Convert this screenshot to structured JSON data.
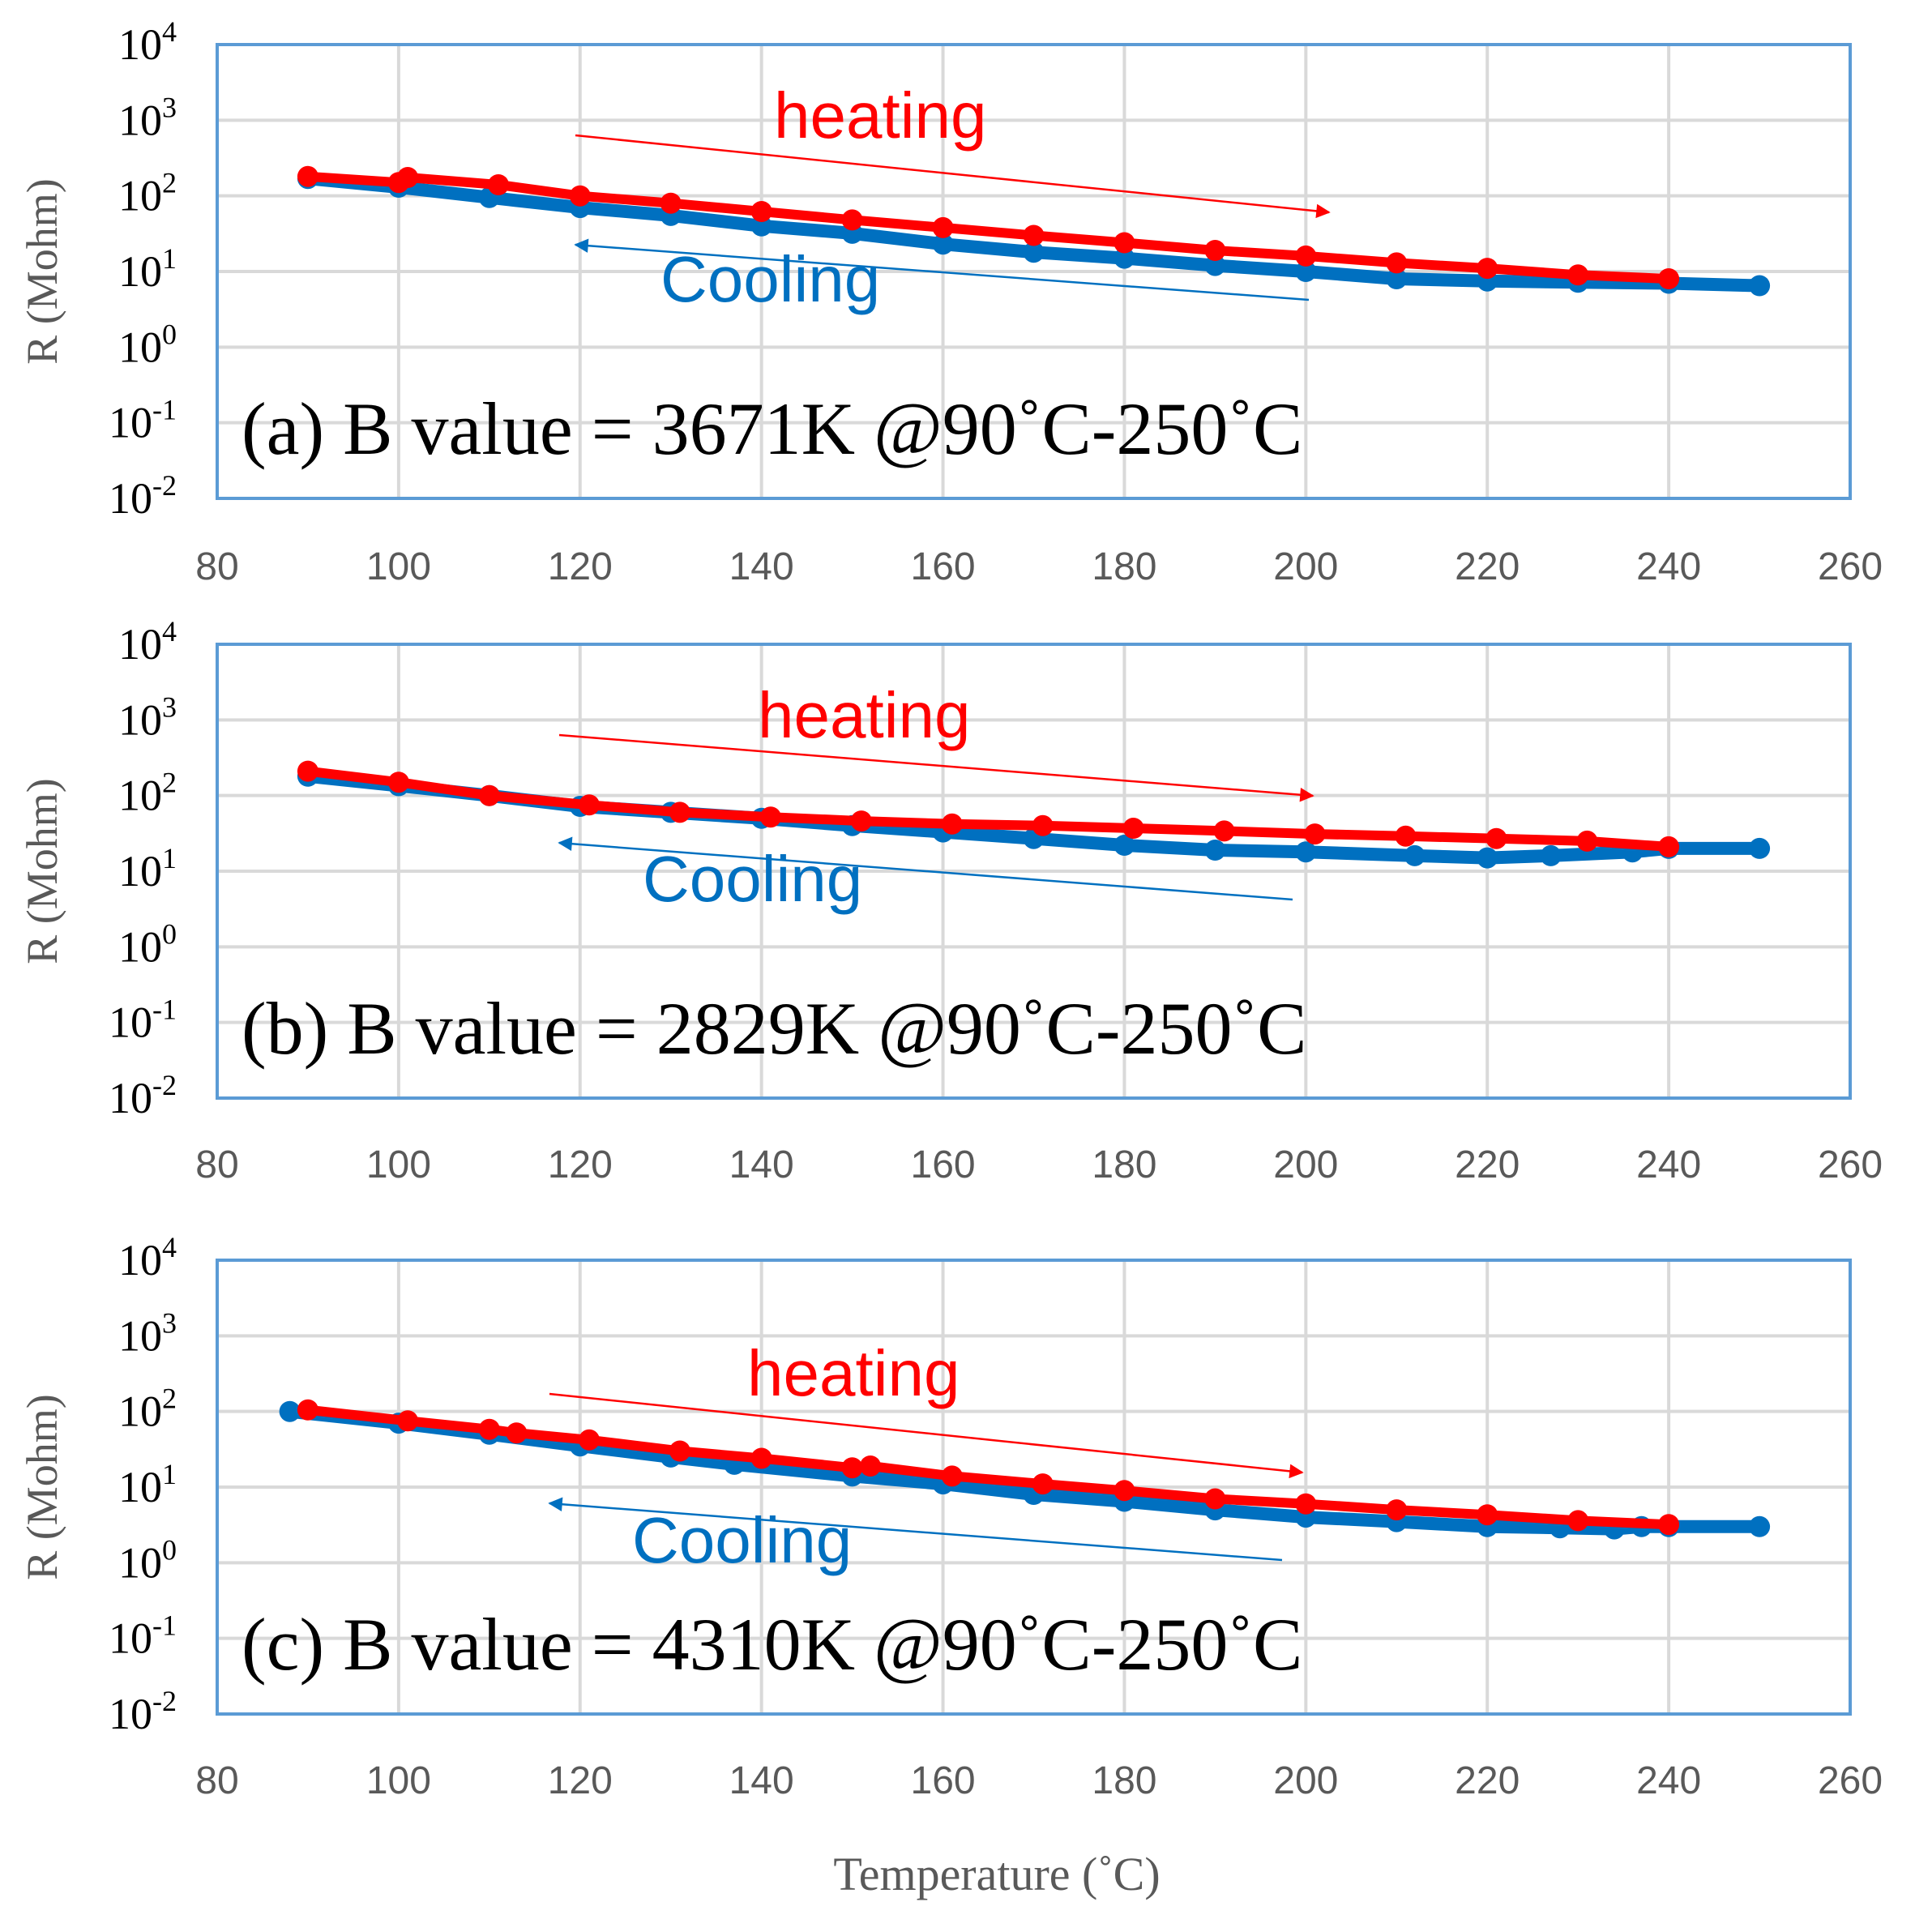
{
  "figure": {
    "xlabel": "Temperature (˚C)",
    "heating_label": "heating",
    "cooling_label": "Cooling",
    "colors": {
      "heating": "#ff0000",
      "cooling": "#0070c0",
      "grid": "#d9d9d9",
      "frame": "#5b9bd5"
    }
  },
  "chart_data": [
    {
      "type": "line",
      "title": "(a) B value = 3671K @90˚C-250˚C",
      "xlabel": "Temperature (˚C)",
      "ylabel": "R (Mohm)",
      "xlim": [
        80,
        260
      ],
      "ylim_log10": [
        -2,
        4
      ],
      "x_ticks": [
        "80",
        "100",
        "120",
        "140",
        "160",
        "180",
        "200",
        "220",
        "240",
        "260"
      ],
      "y_ticks": [
        {
          "base": "10",
          "exp": "4"
        },
        {
          "base": "10",
          "exp": "3"
        },
        {
          "base": "10",
          "exp": "2"
        },
        {
          "base": "10",
          "exp": "1"
        },
        {
          "base": "10",
          "exp": "0"
        },
        {
          "base": "10",
          "exp": "-1"
        },
        {
          "base": "10",
          "exp": "-2"
        }
      ],
      "series": [
        {
          "name": "Cooling",
          "x": [
            250,
            240,
            230,
            220,
            210,
            200,
            190,
            180,
            170,
            160,
            150,
            140,
            130,
            120,
            110,
            100,
            90
          ],
          "y": [
            6.5,
            7,
            7.2,
            7.5,
            8,
            10,
            12,
            15,
            18,
            23,
            32,
            40,
            55,
            70,
            95,
            130,
            170
          ]
        },
        {
          "name": "heating",
          "x": [
            90,
            100,
            101,
            111,
            120,
            130,
            140,
            150,
            160,
            170,
            180,
            190,
            200,
            210,
            220,
            230,
            240
          ],
          "y": [
            180,
            150,
            175,
            140,
            100,
            80,
            62,
            48,
            38,
            30,
            24,
            19,
            16,
            13,
            11,
            9,
            8
          ]
        }
      ]
    },
    {
      "type": "line",
      "title": "(b) B value = 2829K @90˚C-250˚C",
      "xlabel": "Temperature (˚C)",
      "ylabel": "R (Mohm)",
      "xlim": [
        80,
        260
      ],
      "ylim_log10": [
        -2,
        4
      ],
      "x_ticks": [
        "80",
        "100",
        "120",
        "140",
        "160",
        "180",
        "200",
        "220",
        "240",
        "260"
      ],
      "y_ticks": [
        {
          "base": "10",
          "exp": "4"
        },
        {
          "base": "10",
          "exp": "3"
        },
        {
          "base": "10",
          "exp": "2"
        },
        {
          "base": "10",
          "exp": "1"
        },
        {
          "base": "10",
          "exp": "0"
        },
        {
          "base": "10",
          "exp": "-1"
        },
        {
          "base": "10",
          "exp": "-2"
        }
      ],
      "series": [
        {
          "name": "Cooling",
          "x": [
            250,
            240,
            236,
            227,
            220,
            212,
            200,
            190,
            180,
            170,
            160,
            150,
            140,
            130,
            120,
            110,
            100,
            90
          ],
          "y": [
            20,
            20,
            18,
            16,
            15,
            16,
            18,
            19,
            22,
            27,
            33,
            40,
            50,
            60,
            72,
            100,
            135,
            180
          ]
        },
        {
          "name": "heating",
          "x": [
            90,
            100,
            110,
            121,
            131,
            141,
            151,
            161,
            171,
            181,
            191,
            201,
            211,
            221,
            231,
            240
          ],
          "y": [
            210,
            150,
            100,
            75,
            60,
            52,
            46,
            42,
            40,
            37,
            34,
            31,
            29,
            27,
            25,
            21
          ]
        }
      ]
    },
    {
      "type": "line",
      "title": "(c) B value = 4310K @90˚C-250˚C",
      "xlabel": "Temperature (˚C)",
      "ylabel": "R (Mohm)",
      "xlim": [
        80,
        260
      ],
      "ylim_log10": [
        -2,
        4
      ],
      "x_ticks": [
        "80",
        "100",
        "120",
        "140",
        "160",
        "180",
        "200",
        "220",
        "240",
        "260"
      ],
      "y_ticks": [
        {
          "base": "10",
          "exp": "4"
        },
        {
          "base": "10",
          "exp": "3"
        },
        {
          "base": "10",
          "exp": "2"
        },
        {
          "base": "10",
          "exp": "1"
        },
        {
          "base": "10",
          "exp": "0"
        },
        {
          "base": "10",
          "exp": "-1"
        },
        {
          "base": "10",
          "exp": "-2"
        }
      ],
      "series": [
        {
          "name": "Cooling",
          "x": [
            250,
            240,
            237,
            234,
            228,
            220,
            210,
            200,
            190,
            180,
            170,
            160,
            150,
            137,
            130,
            120,
            110,
            100,
            88
          ],
          "y": [
            3,
            3,
            3,
            2.8,
            2.9,
            3,
            3.5,
            4,
            5,
            6.5,
            8,
            11,
            14,
            20,
            25,
            35,
            50,
            70,
            100
          ]
        },
        {
          "name": "heating",
          "x": [
            90,
            101,
            110,
            113,
            121,
            131,
            140,
            150,
            152,
            161,
            171,
            180,
            190,
            200,
            210,
            220,
            230,
            240
          ],
          "y": [
            105,
            75,
            58,
            52,
            42,
            30,
            24,
            18,
            19,
            14,
            11,
            9,
            7,
            6,
            5,
            4.3,
            3.6,
            3.2
          ]
        }
      ]
    }
  ]
}
